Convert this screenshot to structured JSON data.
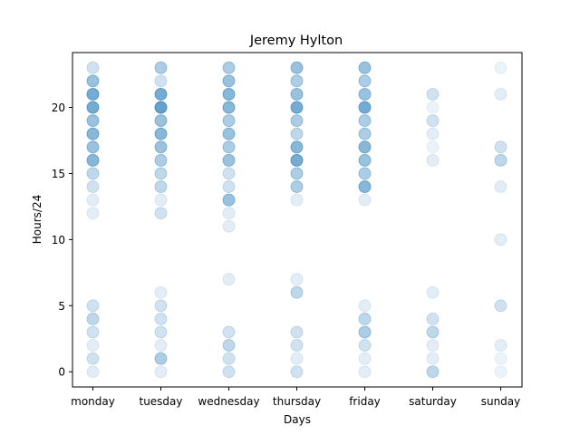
{
  "chart_data": {
    "type": "scatter",
    "title": "Jeremy Hylton",
    "xlabel": "Days",
    "ylabel": "Hours/24",
    "categories": [
      "monday",
      "tuesday",
      "wednesday",
      "thursday",
      "friday",
      "saturday",
      "sunday"
    ],
    "y_ticks": [
      0,
      5,
      10,
      15,
      20
    ],
    "ylim": [
      -1.15,
      24.15
    ],
    "grid": false,
    "marker_color": "#1f77b4",
    "points": [
      {
        "day": "monday",
        "hour": 0,
        "count": 1
      },
      {
        "day": "monday",
        "hour": 1,
        "count": 2
      },
      {
        "day": "monday",
        "hour": 2,
        "count": 1
      },
      {
        "day": "monday",
        "hour": 3,
        "count": 2
      },
      {
        "day": "monday",
        "hour": 4,
        "count": 3
      },
      {
        "day": "monday",
        "hour": 5,
        "count": 2
      },
      {
        "day": "monday",
        "hour": 12,
        "count": 1
      },
      {
        "day": "monday",
        "hour": 13,
        "count": 1
      },
      {
        "day": "monday",
        "hour": 14,
        "count": 2
      },
      {
        "day": "monday",
        "hour": 15,
        "count": 3
      },
      {
        "day": "monday",
        "hour": 16,
        "count": 6
      },
      {
        "day": "monday",
        "hour": 17,
        "count": 5
      },
      {
        "day": "monday",
        "hour": 18,
        "count": 6
      },
      {
        "day": "monday",
        "hour": 19,
        "count": 5
      },
      {
        "day": "monday",
        "hour": 20,
        "count": 7
      },
      {
        "day": "monday",
        "hour": 21,
        "count": 7
      },
      {
        "day": "monday",
        "hour": 22,
        "count": 5
      },
      {
        "day": "monday",
        "hour": 23,
        "count": 2
      },
      {
        "day": "tuesday",
        "hour": 0,
        "count": 1
      },
      {
        "day": "tuesday",
        "hour": 1,
        "count": 4
      },
      {
        "day": "tuesday",
        "hour": 2,
        "count": 1
      },
      {
        "day": "tuesday",
        "hour": 3,
        "count": 2
      },
      {
        "day": "tuesday",
        "hour": 4,
        "count": 2
      },
      {
        "day": "tuesday",
        "hour": 5,
        "count": 2
      },
      {
        "day": "tuesday",
        "hour": 6,
        "count": 1
      },
      {
        "day": "tuesday",
        "hour": 12,
        "count": 2
      },
      {
        "day": "tuesday",
        "hour": 13,
        "count": 1
      },
      {
        "day": "tuesday",
        "hour": 14,
        "count": 3
      },
      {
        "day": "tuesday",
        "hour": 15,
        "count": 3
      },
      {
        "day": "tuesday",
        "hour": 16,
        "count": 4
      },
      {
        "day": "tuesday",
        "hour": 17,
        "count": 5
      },
      {
        "day": "tuesday",
        "hour": 18,
        "count": 6
      },
      {
        "day": "tuesday",
        "hour": 19,
        "count": 5
      },
      {
        "day": "tuesday",
        "hour": 20,
        "count": 8
      },
      {
        "day": "tuesday",
        "hour": 21,
        "count": 7
      },
      {
        "day": "tuesday",
        "hour": 22,
        "count": 2
      },
      {
        "day": "tuesday",
        "hour": 23,
        "count": 4
      },
      {
        "day": "wednesday",
        "hour": 0,
        "count": 2
      },
      {
        "day": "wednesday",
        "hour": 1,
        "count": 2
      },
      {
        "day": "wednesday",
        "hour": 2,
        "count": 3
      },
      {
        "day": "wednesday",
        "hour": 3,
        "count": 2
      },
      {
        "day": "wednesday",
        "hour": 7,
        "count": 1
      },
      {
        "day": "wednesday",
        "hour": 11,
        "count": 1
      },
      {
        "day": "wednesday",
        "hour": 12,
        "count": 1
      },
      {
        "day": "wednesday",
        "hour": 13,
        "count": 5
      },
      {
        "day": "wednesday",
        "hour": 14,
        "count": 2
      },
      {
        "day": "wednesday",
        "hour": 15,
        "count": 2
      },
      {
        "day": "wednesday",
        "hour": 16,
        "count": 5
      },
      {
        "day": "wednesday",
        "hour": 17,
        "count": 4
      },
      {
        "day": "wednesday",
        "hour": 18,
        "count": 5
      },
      {
        "day": "wednesday",
        "hour": 19,
        "count": 4
      },
      {
        "day": "wednesday",
        "hour": 20,
        "count": 6
      },
      {
        "day": "wednesday",
        "hour": 21,
        "count": 6
      },
      {
        "day": "wednesday",
        "hour": 22,
        "count": 5
      },
      {
        "day": "wednesday",
        "hour": 23,
        "count": 4
      },
      {
        "day": "thursday",
        "hour": 0,
        "count": 2
      },
      {
        "day": "thursday",
        "hour": 1,
        "count": 1
      },
      {
        "day": "thursday",
        "hour": 2,
        "count": 2
      },
      {
        "day": "thursday",
        "hour": 3,
        "count": 2
      },
      {
        "day": "thursday",
        "hour": 6,
        "count": 3
      },
      {
        "day": "thursday",
        "hour": 7,
        "count": 1
      },
      {
        "day": "thursday",
        "hour": 13,
        "count": 1
      },
      {
        "day": "thursday",
        "hour": 14,
        "count": 4
      },
      {
        "day": "thursday",
        "hour": 15,
        "count": 4
      },
      {
        "day": "thursday",
        "hour": 16,
        "count": 7
      },
      {
        "day": "thursday",
        "hour": 17,
        "count": 6
      },
      {
        "day": "thursday",
        "hour": 18,
        "count": 3
      },
      {
        "day": "thursday",
        "hour": 19,
        "count": 4
      },
      {
        "day": "thursday",
        "hour": 20,
        "count": 7
      },
      {
        "day": "thursday",
        "hour": 21,
        "count": 5
      },
      {
        "day": "thursday",
        "hour": 22,
        "count": 4
      },
      {
        "day": "thursday",
        "hour": 23,
        "count": 5
      },
      {
        "day": "friday",
        "hour": 0,
        "count": 1
      },
      {
        "day": "friday",
        "hour": 1,
        "count": 1
      },
      {
        "day": "friday",
        "hour": 2,
        "count": 2
      },
      {
        "day": "friday",
        "hour": 3,
        "count": 4
      },
      {
        "day": "friday",
        "hour": 4,
        "count": 3
      },
      {
        "day": "friday",
        "hour": 5,
        "count": 1
      },
      {
        "day": "friday",
        "hour": 13,
        "count": 1
      },
      {
        "day": "friday",
        "hour": 14,
        "count": 6
      },
      {
        "day": "friday",
        "hour": 15,
        "count": 4
      },
      {
        "day": "friday",
        "hour": 16,
        "count": 5
      },
      {
        "day": "friday",
        "hour": 17,
        "count": 6
      },
      {
        "day": "friday",
        "hour": 18,
        "count": 4
      },
      {
        "day": "friday",
        "hour": 19,
        "count": 4
      },
      {
        "day": "friday",
        "hour": 20,
        "count": 7
      },
      {
        "day": "friday",
        "hour": 21,
        "count": 5
      },
      {
        "day": "friday",
        "hour": 22,
        "count": 4
      },
      {
        "day": "friday",
        "hour": 23,
        "count": 5
      },
      {
        "day": "saturday",
        "hour": 0,
        "count": 3
      },
      {
        "day": "saturday",
        "hour": 1,
        "count": 1
      },
      {
        "day": "saturday",
        "hour": 2,
        "count": 1
      },
      {
        "day": "saturday",
        "hour": 3,
        "count": 3
      },
      {
        "day": "saturday",
        "hour": 4,
        "count": 2
      },
      {
        "day": "saturday",
        "hour": 6,
        "count": 1
      },
      {
        "day": "saturday",
        "hour": 16,
        "count": 1
      },
      {
        "day": "saturday",
        "hour": 17,
        "count": 0.5
      },
      {
        "day": "saturday",
        "hour": 18,
        "count": 1
      },
      {
        "day": "saturday",
        "hour": 19,
        "count": 2
      },
      {
        "day": "saturday",
        "hour": 20,
        "count": 0.5
      },
      {
        "day": "saturday",
        "hour": 21,
        "count": 2
      },
      {
        "day": "sunday",
        "hour": 0,
        "count": 0.5
      },
      {
        "day": "sunday",
        "hour": 1,
        "count": 0.5
      },
      {
        "day": "sunday",
        "hour": 2,
        "count": 1
      },
      {
        "day": "sunday",
        "hour": 5,
        "count": 2
      },
      {
        "day": "sunday",
        "hour": 10,
        "count": 1
      },
      {
        "day": "sunday",
        "hour": 14,
        "count": 1
      },
      {
        "day": "sunday",
        "hour": 16,
        "count": 3
      },
      {
        "day": "sunday",
        "hour": 17,
        "count": 2
      },
      {
        "day": "sunday",
        "hour": 21,
        "count": 1
      },
      {
        "day": "sunday",
        "hour": 23,
        "count": 0.5
      }
    ]
  }
}
